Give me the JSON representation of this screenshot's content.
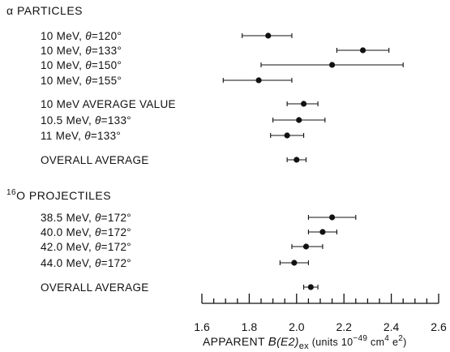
{
  "chart_data": {
    "type": "scatter",
    "xlim": [
      1.6,
      2.6
    ],
    "x_ticks": [
      "1.6",
      "1.8",
      "2.0",
      "2.2",
      "2.4",
      "2.6"
    ],
    "xlabel": {
      "prefix": "APPARENT ",
      "symbol": "B",
      "arg": "(E2)",
      "sub": "ex",
      "units_open": " (units 10",
      "exp1": "−49",
      "units_mid": " cm",
      "exp2": "4",
      "units_e": " e",
      "exp3": "2",
      "units_close": ")"
    },
    "groups": [
      {
        "name": "α PARTICLES",
        "rows": [
          {
            "label": "10 MeV, θ=120°",
            "value": 1.88,
            "err_low": 1.77,
            "err_high": 1.98
          },
          {
            "label": "10 MeV, θ=133°",
            "value": 2.28,
            "err_low": 2.17,
            "err_high": 2.39
          },
          {
            "label": "10 MeV, θ=150°",
            "value": 2.15,
            "err_low": 1.85,
            "err_high": 2.45
          },
          {
            "label": "10 MeV, θ=155°",
            "value": 1.84,
            "err_low": 1.69,
            "err_high": 1.98
          },
          {
            "label": "10 MeV  AVERAGE VALUE",
            "value": 2.03,
            "err_low": 1.96,
            "err_high": 2.09
          },
          {
            "label": "10.5 MeV, θ=133°",
            "value": 2.01,
            "err_low": 1.9,
            "err_high": 2.12
          },
          {
            "label": "11 MeV, θ=133°",
            "value": 1.96,
            "err_low": 1.89,
            "err_high": 2.03
          },
          {
            "label": "OVERALL AVERAGE",
            "value": 2.0,
            "err_low": 1.96,
            "err_high": 2.04
          }
        ]
      },
      {
        "name_sup": "16",
        "name": "O PROJECTILES",
        "rows": [
          {
            "label": "38.5 MeV, θ=172°",
            "value": 2.15,
            "err_low": 2.05,
            "err_high": 2.25
          },
          {
            "label": "40.0 MeV, θ=172°",
            "value": 2.11,
            "err_low": 2.05,
            "err_high": 2.17
          },
          {
            "label": "42.0 MeV, θ=172°",
            "value": 2.04,
            "err_low": 1.98,
            "err_high": 2.11
          },
          {
            "label": "44.0 MeV, θ=172°",
            "value": 1.99,
            "err_low": 1.93,
            "err_high": 2.05
          },
          {
            "label": "OVERALL AVERAGE",
            "value": 2.06,
            "err_low": 2.03,
            "err_high": 2.09
          }
        ]
      }
    ]
  }
}
